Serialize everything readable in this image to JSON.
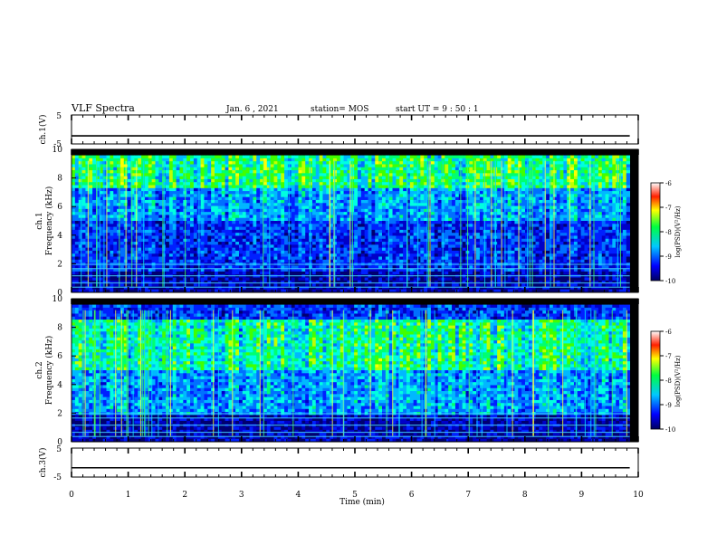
{
  "header": {
    "title": "VLF Spectra",
    "date": "Jan. 6 , 2021",
    "station": "station= MOS",
    "start": "start UT = 9 : 50 : 1"
  },
  "chart_data": [
    {
      "type": "line",
      "ylabel": "ch.1(V)",
      "ylim": [
        -5,
        5
      ],
      "yticks": [
        "5",
        "-5"
      ],
      "xlim": [
        0,
        10
      ],
      "series": [
        {
          "x": [
            0,
            9.85
          ],
          "y": [
            -2.2,
            -2.2
          ]
        }
      ]
    },
    {
      "type": "heatmap",
      "ylabel": "ch.1",
      "ylabel2": "Frequency (kHz)",
      "ylim": [
        0,
        10
      ],
      "yticks": [
        "0",
        "2",
        "4",
        "6",
        "8",
        "10"
      ],
      "xlim": [
        0,
        10
      ],
      "colorbar": {
        "label": "log(PSD)(V²/Hz)",
        "ticks": [
          "-6",
          "-7",
          "-8",
          "-9",
          "-10"
        ],
        "range": [
          -10,
          -6
        ]
      },
      "bands_khz": [
        [
          7.2,
          9.4,
          "strong"
        ],
        [
          1.5,
          7.2,
          "medium"
        ],
        [
          0,
          1.5,
          "weak"
        ]
      ]
    },
    {
      "type": "heatmap",
      "ylabel": "ch.2",
      "ylabel2": "Frequency (kHz)",
      "ylim": [
        0,
        10
      ],
      "yticks": [
        "0",
        "2",
        "4",
        "6",
        "8",
        "10"
      ],
      "xlim": [
        0,
        10
      ],
      "colorbar": {
        "label": "log(PSD)(V²/Hz)",
        "ticks": [
          "-6",
          "-7",
          "-8",
          "-9",
          "-10"
        ],
        "range": [
          -10,
          -6
        ]
      },
      "bands_khz": [
        [
          5.0,
          8.2,
          "strong"
        ],
        [
          1.8,
          9.2,
          "medium"
        ],
        [
          0,
          1.8,
          "weak"
        ]
      ]
    },
    {
      "type": "line",
      "ylabel": "ch.3(V)",
      "ylim": [
        -5,
        5
      ],
      "yticks": [
        "5",
        "-5"
      ],
      "xlim": [
        0,
        10
      ],
      "xticks": [
        "0",
        "1",
        "2",
        "3",
        "4",
        "5",
        "6",
        "7",
        "8",
        "9",
        "10"
      ],
      "xlabel": "Time (min)",
      "series": [
        {
          "x": [
            0,
            9.85
          ],
          "y": [
            -1.8,
            -1.8
          ]
        }
      ]
    }
  ],
  "colors": {
    "spectrum_background": "#000000",
    "frame": "#000000"
  }
}
